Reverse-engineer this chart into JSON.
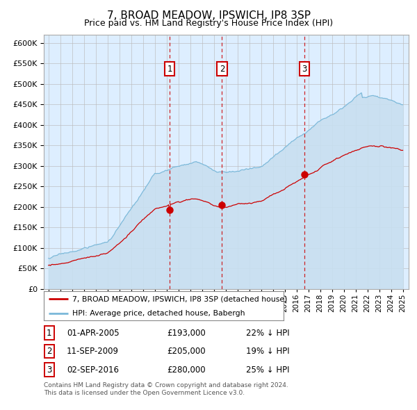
{
  "title": "7, BROAD MEADOW, IPSWICH, IP8 3SP",
  "subtitle": "Price paid vs. HM Land Registry's House Price Index (HPI)",
  "legend_line1": "7, BROAD MEADOW, IPSWICH, IP8 3SP (detached house)",
  "legend_line2": "HPI: Average price, detached house, Babergh",
  "footnote1": "Contains HM Land Registry data © Crown copyright and database right 2024.",
  "footnote2": "This data is licensed under the Open Government Licence v3.0.",
  "transactions": [
    {
      "num": "1",
      "date": "01-APR-2005",
      "price": "£193,000",
      "hpi_diff": "22% ↓ HPI"
    },
    {
      "num": "2",
      "date": "11-SEP-2009",
      "price": "£205,000",
      "hpi_diff": "19% ↓ HPI"
    },
    {
      "num": "3",
      "date": "02-SEP-2016",
      "price": "£280,000",
      "hpi_diff": "25% ↓ HPI"
    }
  ],
  "sale_dates_decimal": [
    2005.25,
    2009.69,
    2016.67
  ],
  "sale_prices": [
    193000,
    205000,
    280000
  ],
  "ylim": [
    0,
    620000
  ],
  "yticks": [
    0,
    50000,
    100000,
    150000,
    200000,
    250000,
    300000,
    350000,
    400000,
    450000,
    500000,
    550000,
    600000
  ],
  "xlim_start": 1994.6,
  "xlim_end": 2025.5,
  "hpi_color": "#7ab8d9",
  "hpi_fill_color": "#c8dff0",
  "price_color": "#cc0000",
  "bg_color": "#ddeeff",
  "grid_color": "#bbbbbb",
  "dashed_color": "#cc0000",
  "box_color": "#cc0000",
  "title_fontsize": 11,
  "subtitle_fontsize": 9
}
